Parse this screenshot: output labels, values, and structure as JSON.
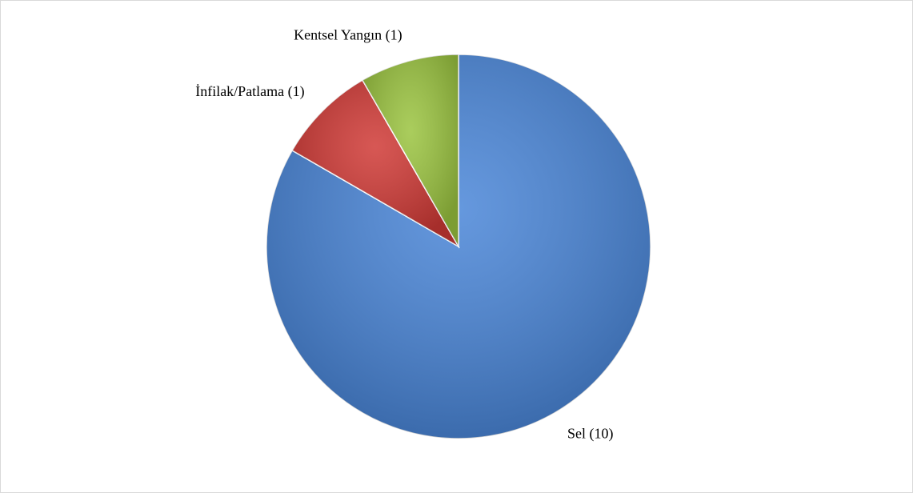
{
  "chart_data": {
    "type": "pie",
    "values": [
      10,
      1,
      1
    ],
    "value_labels": [
      "Sel (10)",
      "İnfilak/Patlama (1)",
      "Kentsel Yangın (1)"
    ],
    "colors": [
      "#4a86d8",
      "#d03a36",
      "#9bc440"
    ],
    "start_angle": 0,
    "direction": "clockwise"
  }
}
